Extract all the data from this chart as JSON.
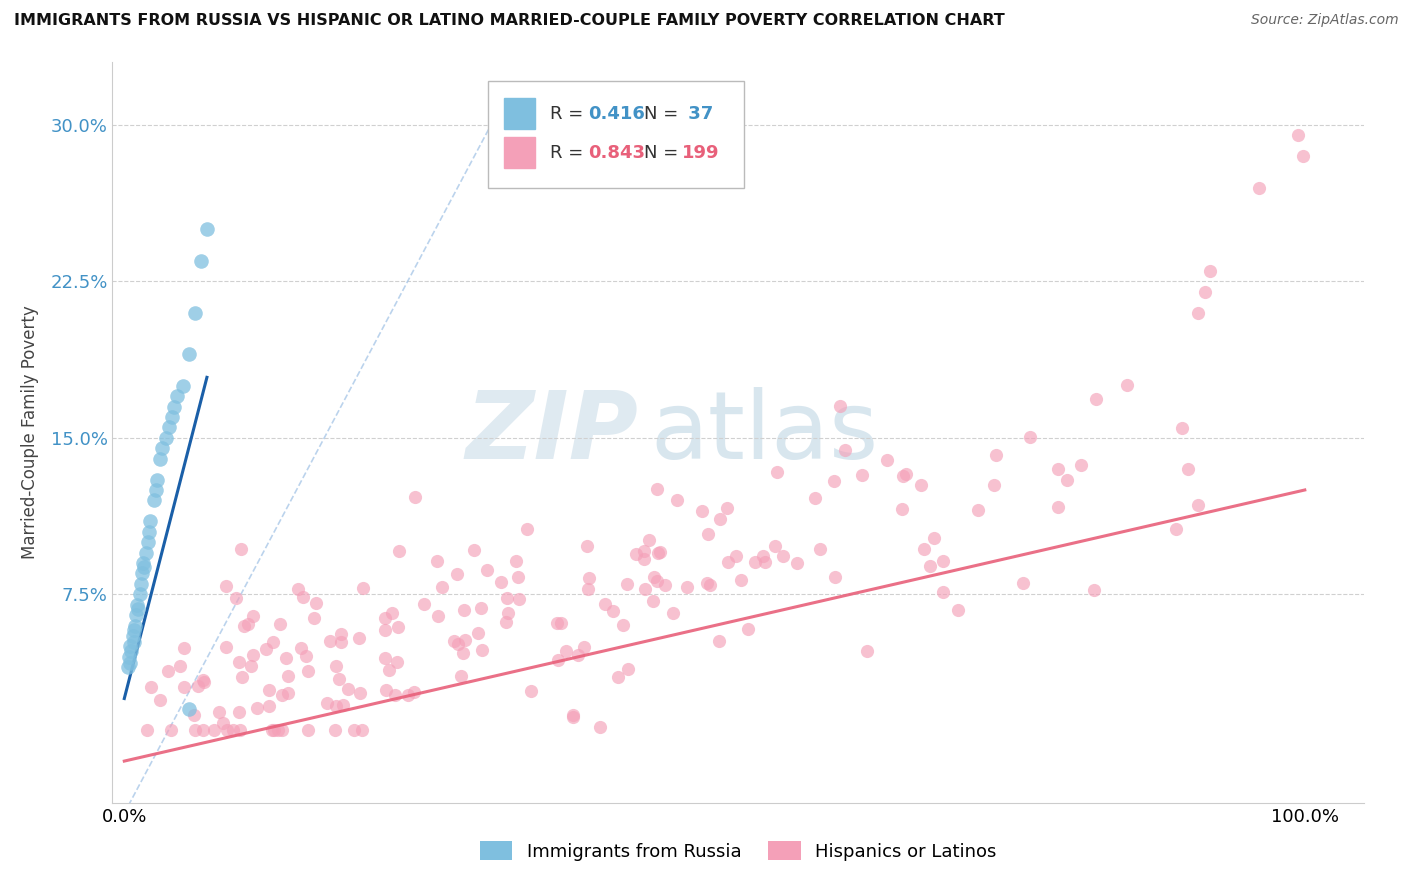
{
  "title": "IMMIGRANTS FROM RUSSIA VS HISPANIC OR LATINO MARRIED-COUPLE FAMILY POVERTY CORRELATION CHART",
  "source": "Source: ZipAtlas.com",
  "ylabel": "Married-Couple Family Poverty",
  "yticks": [
    "7.5%",
    "15.0%",
    "22.5%",
    "30.0%"
  ],
  "ytick_values": [
    0.075,
    0.15,
    0.225,
    0.3
  ],
  "ymin": -0.025,
  "ymax": 0.33,
  "xmin": -0.01,
  "xmax": 1.05,
  "legend_r1": "R = 0.416",
  "legend_n1": "N =  37",
  "legend_r2": "R = 0.843",
  "legend_n2": "N = 199",
  "color_blue": "#7fbfdf",
  "color_pink": "#f4a0b8",
  "color_blue_line": "#1a5fa8",
  "color_pink_line": "#e8607a",
  "color_text_blue": "#4292c6",
  "color_text_pink": "#e8607a",
  "watermark_zip": "ZIP",
  "watermark_atlas": "atlas",
  "blue_seed": 42,
  "pink_seed": 99
}
